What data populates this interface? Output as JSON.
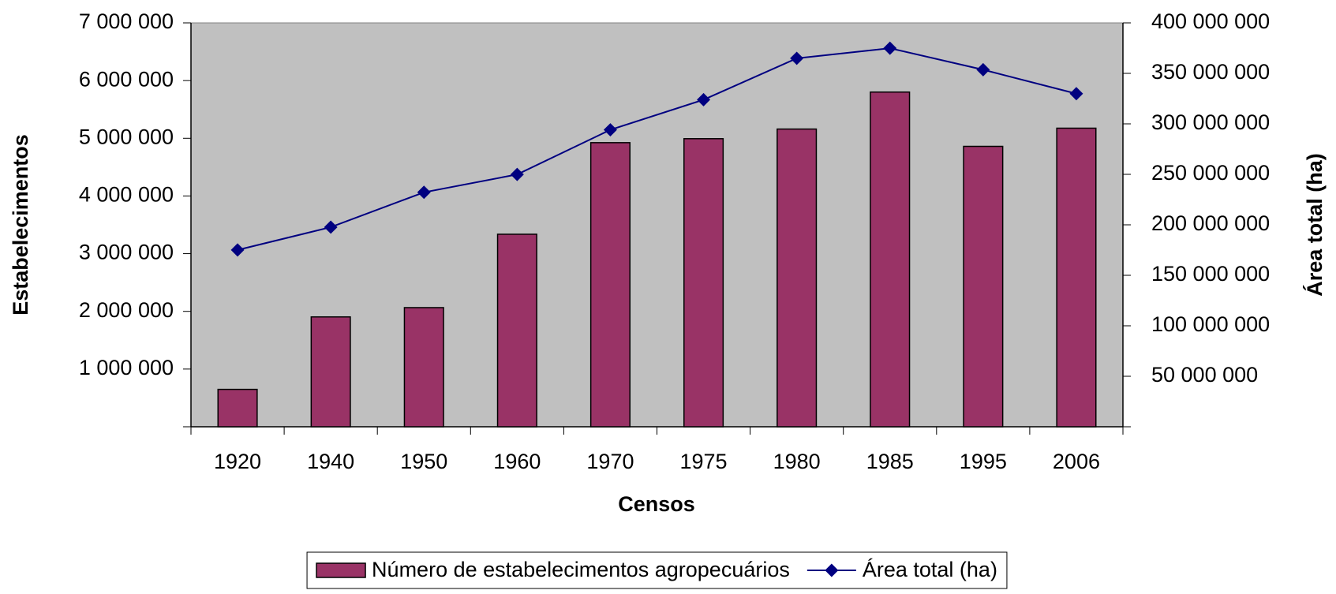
{
  "chart_data": {
    "type": "bar_line",
    "x_label": "Censos",
    "y_label": "Estabelecimentos",
    "y2_label": "Área total (ha)",
    "categories": [
      "1920",
      "1940",
      "1950",
      "1960",
      "1970",
      "1975",
      "1980",
      "1985",
      "1995",
      "2006"
    ],
    "series": [
      {
        "name": "Número de estabelecimentos agropecuários",
        "type": "bar",
        "color": "#993366",
        "values": [
          648000,
          1904000,
          2065000,
          3337000,
          4924000,
          4993000,
          5160000,
          5801000,
          4860000,
          5175000
        ]
      },
      {
        "name": "Área total (ha)",
        "type": "line",
        "axis": "y2",
        "color": "#000080",
        "values": [
          175100000,
          197700000,
          232200000,
          249900000,
          294100000,
          323900000,
          364900000,
          374900000,
          353600000,
          329900000
        ]
      }
    ],
    "ylim": [
      0,
      7000000
    ],
    "yticks": [
      {
        "value": 1000000,
        "label": "1 000 000"
      },
      {
        "value": 2000000,
        "label": "2 000 000"
      },
      {
        "value": 3000000,
        "label": "3 000 000"
      },
      {
        "value": 4000000,
        "label": "4 000 000"
      },
      {
        "value": 5000000,
        "label": "5 000 000"
      },
      {
        "value": 6000000,
        "label": "6 000 000"
      },
      {
        "value": 7000000,
        "label": "7 000 000"
      }
    ],
    "y2lim": [
      0,
      400000000
    ],
    "y2ticks": [
      {
        "value": 50000000,
        "label": "50 000 000"
      },
      {
        "value": 100000000,
        "label": "100 000 000"
      },
      {
        "value": 150000000,
        "label": "150 000 000"
      },
      {
        "value": 200000000,
        "label": "200 000 000"
      },
      {
        "value": 250000000,
        "label": "250 000 000"
      },
      {
        "value": 300000000,
        "label": "300 000 000"
      },
      {
        "value": 350000000,
        "label": "350 000 000"
      },
      {
        "value": 400000000,
        "label": "400 000 000"
      }
    ],
    "plot_background": "#c0c0c0"
  }
}
